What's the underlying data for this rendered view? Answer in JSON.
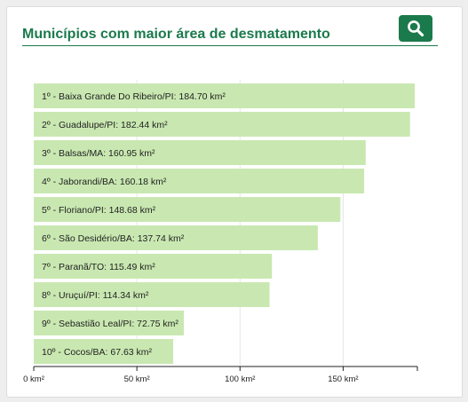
{
  "header": {
    "title": "Municípios com maior área de desmatamento",
    "search_icon": "search-icon"
  },
  "colors": {
    "accent": "#1b7a4c",
    "bar": "#c9e8b1",
    "grid": "#e6e6e6"
  },
  "chart_data": {
    "type": "bar",
    "orientation": "horizontal",
    "title": "Municípios com maior área de desmatamento",
    "categories": [
      "1º - Baixa Grande Do Ribeiro/PI: 184.70 km²",
      "2º - Guadalupe/PI: 182.44 km²",
      "3º - Balsas/MA: 160.95 km²",
      "4º - Jaborandi/BA: 160.18 km²",
      "5º - Floriano/PI: 148.68 km²",
      "6º - São Desidério/BA: 137.74 km²",
      "7º - Paranã/TO: 115.49 km²",
      "8º - Uruçuí/PI: 114.34 km²",
      "9º - Sebastião Leal/PI: 72.75 km²",
      "10º - Cocos/BA: 67.63 km²"
    ],
    "values": [
      184.7,
      182.44,
      160.95,
      160.18,
      148.68,
      137.74,
      115.49,
      114.34,
      72.75,
      67.63
    ],
    "xlim": [
      0,
      186
    ],
    "ticks": [
      0,
      50,
      100,
      150
    ],
    "tick_labels": [
      "0 km²",
      "50 km²",
      "100 km²",
      "150 km²"
    ],
    "grid": true,
    "legend": "none"
  }
}
